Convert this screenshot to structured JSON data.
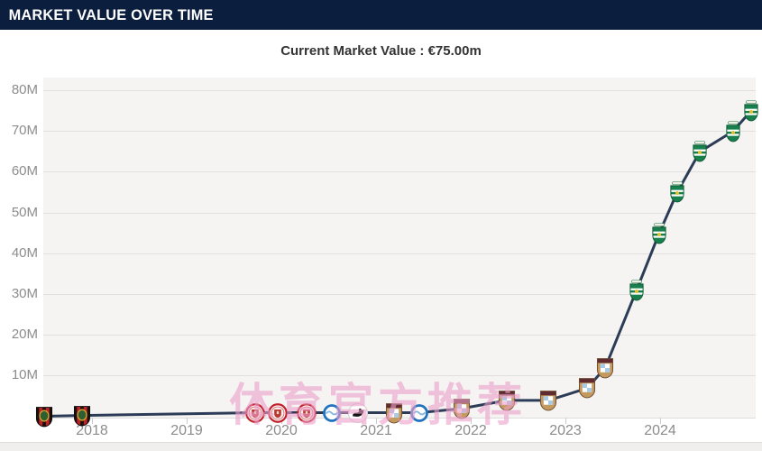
{
  "header": {
    "title": "MARKET VALUE OVER TIME"
  },
  "chart_data": {
    "type": "line",
    "title": "Current Market Value : €75.00m",
    "series_name": "Market value",
    "unit": "€ million",
    "grid": "horizontal",
    "legend": "none",
    "x_axis": {
      "ticks": [
        "2018",
        "2019",
        "2020",
        "2021",
        "2022",
        "2023",
        "2024"
      ],
      "tick_values": [
        2018,
        2019,
        2020,
        2021,
        2022,
        2023,
        2024
      ],
      "range": [
        2017.0,
        2025.1
      ]
    },
    "y_axis": {
      "ticks": [
        "10M",
        "20M",
        "30M",
        "40M",
        "50M",
        "60M",
        "70M",
        "80M"
      ],
      "tick_values": [
        10,
        20,
        30,
        40,
        50,
        60,
        70,
        80
      ],
      "range": [
        0,
        84
      ]
    },
    "points": [
      {
        "date_x": 2017.49,
        "value_m": 0.1,
        "club": "Brommapojkarna"
      },
      {
        "date_x": 2017.89,
        "value_m": 0.3,
        "club": "Brommapojkarna"
      },
      {
        "date_x": 2019.72,
        "value_m": 1,
        "club": "FC St. Pauli"
      },
      {
        "date_x": 2019.96,
        "value_m": 1,
        "club": "FC St. Pauli"
      },
      {
        "date_x": 2020.27,
        "value_m": 1,
        "club": "FC St. Pauli"
      },
      {
        "date_x": 2020.53,
        "value_m": 1,
        "club": "Brighton & Hove Albion"
      },
      {
        "date_x": 2020.81,
        "value_m": 1,
        "club": "Swansea City"
      },
      {
        "date_x": 2021.19,
        "value_m": 1,
        "club": "Coventry City"
      },
      {
        "date_x": 2021.46,
        "value_m": 1,
        "club": "Brighton & Hove Albion"
      },
      {
        "date_x": 2021.9,
        "value_m": 2,
        "club": "Coventry City"
      },
      {
        "date_x": 2022.38,
        "value_m": 4,
        "club": "Coventry City"
      },
      {
        "date_x": 2022.82,
        "value_m": 4,
        "club": "Coventry City"
      },
      {
        "date_x": 2023.23,
        "value_m": 7,
        "club": "Coventry City"
      },
      {
        "date_x": 2023.42,
        "value_m": 12,
        "club": "Coventry City"
      },
      {
        "date_x": 2023.75,
        "value_m": 31,
        "club": "Sporting CP"
      },
      {
        "date_x": 2023.99,
        "value_m": 45,
        "club": "Sporting CP"
      },
      {
        "date_x": 2024.18,
        "value_m": 55,
        "club": "Sporting CP"
      },
      {
        "date_x": 2024.42,
        "value_m": 65,
        "club": "Sporting CP"
      },
      {
        "date_x": 2024.77,
        "value_m": 70,
        "club": "Sporting CP"
      },
      {
        "date_x": 2024.96,
        "value_m": 75,
        "club": "Sporting CP"
      }
    ]
  },
  "watermark": {
    "text": "体育官方推荐",
    "color": "#ec9fca"
  },
  "colors": {
    "header_bg": "#0b1e3d",
    "line": "#2c3c57",
    "plot_bg": "#f5f4f2",
    "grid": "#e2e0de",
    "axis_label": "#8c8c8c"
  }
}
